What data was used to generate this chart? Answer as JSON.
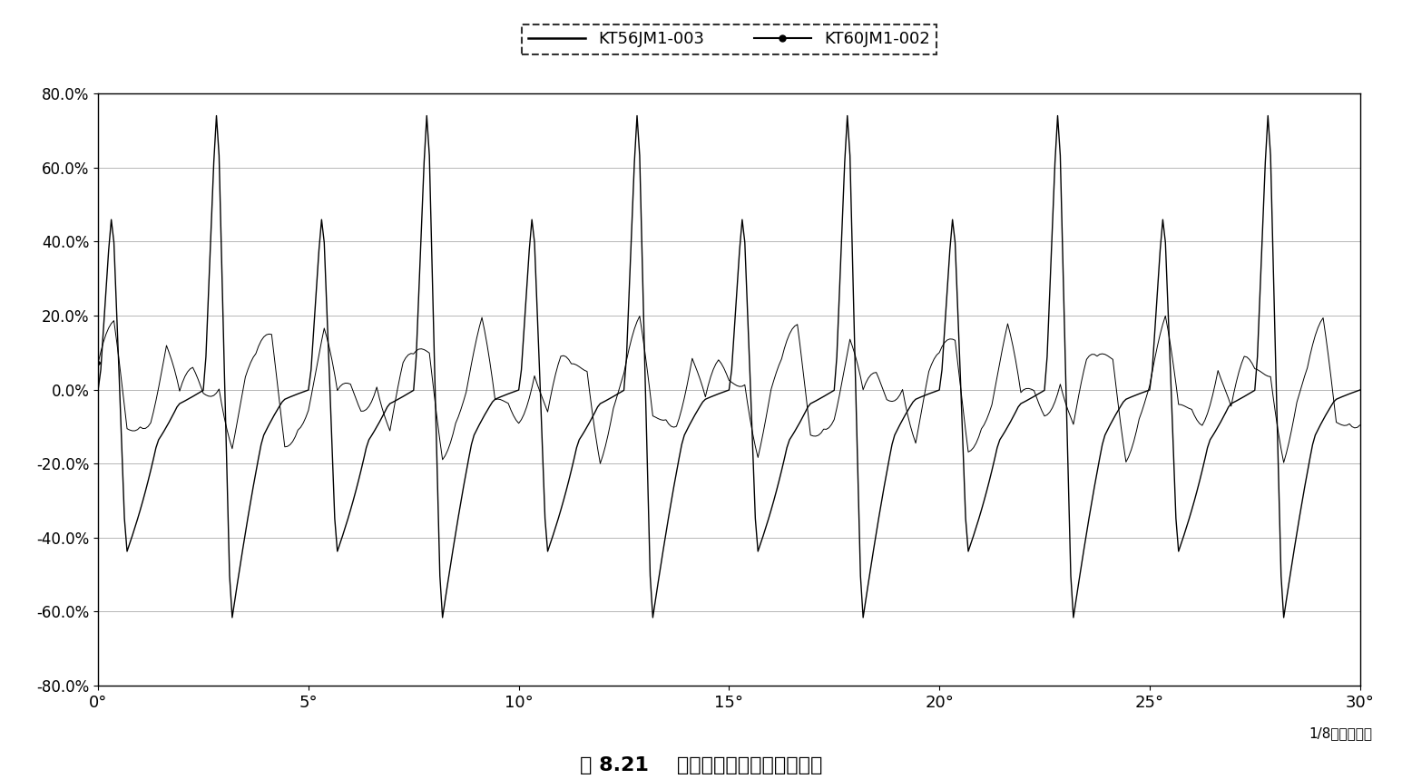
{
  "xlim": [
    0,
    30
  ],
  "ylim": [
    -0.8,
    0.8
  ],
  "yticks": [
    -0.8,
    -0.6,
    -0.4,
    -0.2,
    0.0,
    0.2,
    0.4,
    0.6,
    0.8
  ],
  "xticks": [
    0,
    5,
    10,
    15,
    20,
    25,
    30
  ],
  "xtick_labels": [
    "0°",
    "5°",
    "10°",
    "15°",
    "20°",
    "25°",
    "30°"
  ],
  "legend_labels": [
    "KT56JM1-003",
    "KT60JM1-002"
  ],
  "xlabel": "1/8微步进驱动",
  "caption": "图 8.21    细分步进时的位置定位精度",
  "line_color": "#000000",
  "bg_color": "#ffffff",
  "degrees": 30,
  "full_step_deg": 1.8,
  "microstep_div": 8,
  "samples_per_degree": 16
}
